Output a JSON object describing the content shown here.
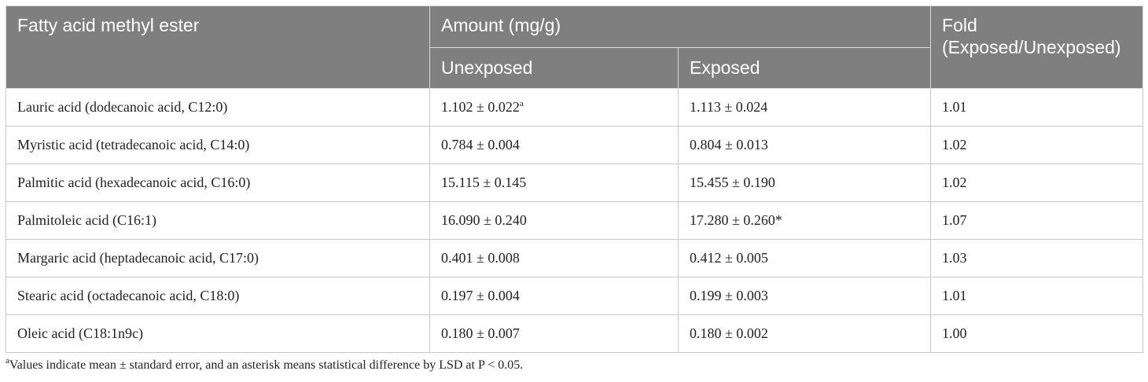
{
  "header": {
    "col1": "Fatty acid methyl ester",
    "amount": "Amount (mg/g)",
    "unexposed": "Unexposed",
    "exposed": "Exposed",
    "fold_line1": "Fold",
    "fold_line2": "(Exposed/Unexposed)"
  },
  "rows": [
    {
      "name": "Lauric acid (dodecanoic acid, C12:0)",
      "unexposed": "1.102 ± 0.022",
      "unexposed_sup": "a",
      "exposed": "1.113 ± 0.024",
      "fold": "1.01"
    },
    {
      "name": "Myristic acid (tetradecanoic acid, C14:0)",
      "unexposed": "0.784 ± 0.004",
      "exposed": "0.804 ± 0.013",
      "fold": "1.02"
    },
    {
      "name": "Palmitic acid (hexadecanoic acid, C16:0)",
      "unexposed": "15.115 ± 0.145",
      "exposed": "15.455 ± 0.190",
      "fold": "1.02"
    },
    {
      "name": "Palmitoleic acid (C16:1)",
      "unexposed": "16.090 ± 0.240",
      "exposed": "17.280 ± 0.260*",
      "fold": "1.07"
    },
    {
      "name": "Margaric acid (heptadecanoic acid, C17:0)",
      "unexposed": "0.401 ± 0.008",
      "exposed": "0.412 ± 0.005",
      "fold": "1.03"
    },
    {
      "name": "Stearic acid (octadecanoic acid, C18:0)",
      "unexposed": "0.197 ± 0.004",
      "exposed": "0.199 ± 0.003",
      "fold": "1.01"
    },
    {
      "name": "Oleic acid (C18:1n9c)",
      "unexposed": "0.180 ± 0.007",
      "exposed": "0.180 ± 0.002",
      "fold": "1.00"
    }
  ],
  "footnote": {
    "marker": "a",
    "text": "Values indicate mean ± standard error, and an asterisk means statistical difference by LSD at P < 0.05."
  }
}
